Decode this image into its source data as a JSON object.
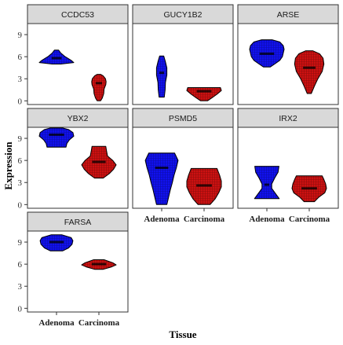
{
  "chart_data": {
    "type": "violin",
    "xlabel": "Tissue",
    "ylabel": "Expression",
    "categories": [
      "Adenoma",
      "Carcinoma"
    ],
    "colors": {
      "Adenoma": "#1111ee",
      "Carcinoma": "#cc1111"
    },
    "ylim": [
      -0.5,
      10.5
    ],
    "yticks": [
      0,
      3,
      6,
      9
    ],
    "panels": [
      {
        "gene": "CCDC53",
        "groups": [
          {
            "name": "Adenoma",
            "min": 5.0,
            "max": 6.9,
            "median": 5.8,
            "profile": [
              [
                5.0,
                0.25
              ],
              [
                5.2,
                1.0
              ],
              [
                5.5,
                0.85
              ],
              [
                6.0,
                0.5
              ],
              [
                6.5,
                0.25
              ],
              [
                6.9,
                0.12
              ]
            ]
          },
          {
            "name": "Carcinoma",
            "min": 0.0,
            "max": 3.6,
            "median": 2.4,
            "profile": [
              [
                0.0,
                0.1
              ],
              [
                0.4,
                0.2
              ],
              [
                1.0,
                0.28
              ],
              [
                1.6,
                0.3
              ],
              [
                2.2,
                0.4
              ],
              [
                2.6,
                0.42
              ],
              [
                3.0,
                0.38
              ],
              [
                3.4,
                0.25
              ],
              [
                3.6,
                0.1
              ]
            ]
          }
        ]
      },
      {
        "gene": "GUCY1B2",
        "groups": [
          {
            "name": "Adenoma",
            "min": 0.5,
            "max": 6.1,
            "median": 3.8,
            "profile": [
              [
                0.5,
                0.15
              ],
              [
                1.5,
                0.2
              ],
              [
                2.5,
                0.22
              ],
              [
                3.5,
                0.3
              ],
              [
                4.5,
                0.3
              ],
              [
                5.3,
                0.22
              ],
              [
                6.1,
                0.12
              ]
            ]
          },
          {
            "name": "Carcinoma",
            "min": 0.0,
            "max": 1.8,
            "median": 1.3,
            "profile": [
              [
                0.0,
                0.2
              ],
              [
                0.4,
                0.45
              ],
              [
                0.9,
                0.75
              ],
              [
                1.4,
                1.0
              ],
              [
                1.8,
                0.95
              ]
            ]
          }
        ]
      },
      {
        "gene": "ARSE",
        "groups": [
          {
            "name": "Adenoma",
            "min": 4.6,
            "max": 8.3,
            "median": 6.4,
            "profile": [
              [
                4.6,
                0.2
              ],
              [
                5.0,
                0.45
              ],
              [
                5.5,
                0.75
              ],
              [
                6.0,
                0.9
              ],
              [
                6.5,
                0.95
              ],
              [
                7.0,
                1.0
              ],
              [
                7.5,
                0.95
              ],
              [
                8.0,
                0.75
              ],
              [
                8.3,
                0.3
              ]
            ]
          },
          {
            "name": "Carcinoma",
            "min": 1.0,
            "max": 6.8,
            "median": 4.5,
            "profile": [
              [
                1.0,
                0.12
              ],
              [
                2.0,
                0.3
              ],
              [
                3.0,
                0.5
              ],
              [
                4.0,
                0.75
              ],
              [
                5.0,
                0.85
              ],
              [
                5.8,
                0.8
              ],
              [
                6.4,
                0.6
              ],
              [
                6.8,
                0.2
              ]
            ]
          }
        ]
      },
      {
        "gene": "YBX2",
        "groups": [
          {
            "name": "Adenoma",
            "min": 7.8,
            "max": 10.4,
            "median": 9.5,
            "profile": [
              [
                7.8,
                0.55
              ],
              [
                8.3,
                0.6
              ],
              [
                8.8,
                0.75
              ],
              [
                9.3,
                1.0
              ],
              [
                9.8,
                0.95
              ],
              [
                10.2,
                0.7
              ],
              [
                10.4,
                0.35
              ]
            ]
          },
          {
            "name": "Carcinoma",
            "min": 3.6,
            "max": 7.9,
            "median": 5.8,
            "profile": [
              [
                3.6,
                0.25
              ],
              [
                4.2,
                0.6
              ],
              [
                4.8,
                0.85
              ],
              [
                5.4,
                1.0
              ],
              [
                6.0,
                0.8
              ],
              [
                6.6,
                0.5
              ],
              [
                7.2,
                0.45
              ],
              [
                7.9,
                0.4
              ]
            ]
          }
        ]
      },
      {
        "gene": "PSMD5",
        "groups": [
          {
            "name": "Adenoma",
            "min": 0.0,
            "max": 7.0,
            "median": 5.0,
            "profile": [
              [
                0.0,
                0.3
              ],
              [
                1.0,
                0.4
              ],
              [
                2.0,
                0.5
              ],
              [
                3.0,
                0.62
              ],
              [
                4.0,
                0.72
              ],
              [
                5.0,
                0.85
              ],
              [
                6.0,
                0.95
              ],
              [
                7.0,
                0.75
              ]
            ]
          },
          {
            "name": "Carcinoma",
            "min": 0.0,
            "max": 4.9,
            "median": 2.6,
            "profile": [
              [
                0.0,
                0.35
              ],
              [
                0.8,
                0.65
              ],
              [
                1.6,
                0.85
              ],
              [
                2.4,
                1.0
              ],
              [
                3.2,
                1.0
              ],
              [
                4.0,
                0.9
              ],
              [
                4.9,
                0.75
              ]
            ]
          }
        ]
      },
      {
        "gene": "IRX2",
        "groups": [
          {
            "name": "Adenoma",
            "min": 0.8,
            "max": 5.2,
            "median": 2.7,
            "profile": [
              [
                0.8,
                0.72
              ],
              [
                1.5,
                0.5
              ],
              [
                2.2,
                0.28
              ],
              [
                2.8,
                0.28
              ],
              [
                3.6,
                0.45
              ],
              [
                4.4,
                0.65
              ],
              [
                5.2,
                0.7
              ]
            ]
          },
          {
            "name": "Carcinoma",
            "min": 0.4,
            "max": 3.9,
            "median": 2.2,
            "profile": [
              [
                0.4,
                0.3
              ],
              [
                1.0,
                0.55
              ],
              [
                1.6,
                0.9
              ],
              [
                2.2,
                1.0
              ],
              [
                2.8,
                0.95
              ],
              [
                3.4,
                0.85
              ],
              [
                3.9,
                0.75
              ]
            ]
          }
        ]
      },
      {
        "gene": "FARSA",
        "groups": [
          {
            "name": "Adenoma",
            "min": 7.8,
            "max": 10.0,
            "median": 9.0,
            "profile": [
              [
                7.8,
                0.35
              ],
              [
                8.2,
                0.7
              ],
              [
                8.7,
                0.9
              ],
              [
                9.2,
                0.95
              ],
              [
                9.6,
                0.85
              ],
              [
                10.0,
                0.3
              ]
            ]
          },
          {
            "name": "Carcinoma",
            "min": 5.3,
            "max": 6.6,
            "median": 6.0,
            "profile": [
              [
                5.3,
                0.25
              ],
              [
                5.6,
                0.7
              ],
              [
                5.9,
                1.0
              ],
              [
                6.2,
                0.8
              ],
              [
                6.6,
                0.3
              ]
            ]
          }
        ]
      }
    ]
  }
}
